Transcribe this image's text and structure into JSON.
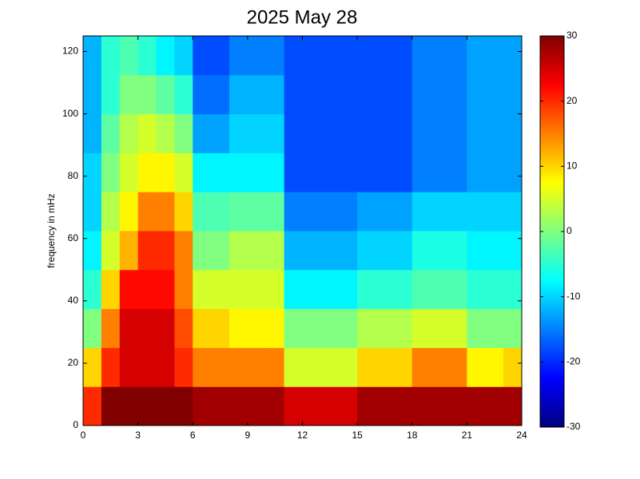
{
  "chart_data": {
    "type": "heatmap",
    "title": "2025 May 28",
    "y_label": "frequency in mHz",
    "colormap": "jet",
    "x_bins": [
      0,
      1,
      2,
      3,
      4,
      5,
      6,
      7,
      8,
      9,
      10,
      11,
      12,
      13,
      14,
      15,
      16,
      17,
      18,
      19,
      20,
      21,
      22,
      23,
      24
    ],
    "y_bins": [
      0,
      12.5,
      25,
      37.5,
      50,
      62.5,
      75,
      87.5,
      100,
      112.5,
      125
    ],
    "z": [
      [
        20,
        30,
        30,
        30,
        30,
        30,
        28,
        28,
        28,
        28,
        28,
        25,
        25,
        25,
        25,
        28,
        28,
        28,
        28,
        28,
        28,
        28,
        28,
        28
      ],
      [
        10,
        20,
        25,
        25,
        25,
        20,
        15,
        15,
        15,
        15,
        15,
        5,
        5,
        5,
        5,
        10,
        10,
        10,
        15,
        15,
        15,
        8,
        8,
        10
      ],
      [
        0,
        15,
        25,
        25,
        25,
        18,
        10,
        10,
        8,
        8,
        8,
        0,
        0,
        0,
        0,
        3,
        3,
        3,
        5,
        5,
        5,
        0,
        0,
        0
      ],
      [
        -5,
        10,
        22,
        22,
        22,
        15,
        5,
        5,
        5,
        5,
        5,
        -8,
        -8,
        -8,
        -8,
        -5,
        -5,
        -5,
        -3,
        -3,
        -3,
        -5,
        -5,
        -5
      ],
      [
        -8,
        5,
        12,
        20,
        20,
        15,
        0,
        0,
        3,
        3,
        3,
        -12,
        -12,
        -12,
        -12,
        -10,
        -10,
        -10,
        -6,
        -6,
        -6,
        -8,
        -8,
        -8
      ],
      [
        -10,
        3,
        8,
        15,
        15,
        10,
        -3,
        -3,
        -2,
        -2,
        -2,
        -15,
        -15,
        -15,
        -15,
        -13,
        -13,
        -13,
        -10,
        -10,
        -10,
        -10,
        -10,
        -10
      ],
      [
        -10,
        0,
        5,
        8,
        8,
        5,
        -8,
        -8,
        -8,
        -8,
        -8,
        -18,
        -18,
        -18,
        -18,
        -18,
        -18,
        -18,
        -15,
        -15,
        -15,
        -13,
        -13,
        -13
      ],
      [
        -12,
        -2,
        3,
        5,
        3,
        0,
        -13,
        -13,
        -10,
        -10,
        -10,
        -18,
        -18,
        -18,
        -18,
        -18,
        -18,
        -18,
        -15,
        -15,
        -15,
        -13,
        -13,
        -13
      ],
      [
        -12,
        -5,
        0,
        0,
        -2,
        -5,
        -16,
        -16,
        -12,
        -12,
        -12,
        -18,
        -18,
        -18,
        -18,
        -18,
        -18,
        -18,
        -15,
        -15,
        -15,
        -13,
        -13,
        -13
      ],
      [
        -12,
        -5,
        -3,
        -5,
        -8,
        -10,
        -18,
        -18,
        -15,
        -15,
        -15,
        -18,
        -18,
        -18,
        -18,
        -18,
        -18,
        -18,
        -15,
        -15,
        -15,
        -13,
        -13,
        -13
      ]
    ],
    "xlim": [
      0,
      24
    ],
    "xticks": [
      0,
      3,
      6,
      9,
      12,
      15,
      18,
      21,
      24
    ],
    "ylim": [
      0,
      125
    ],
    "yticks": [
      0,
      20,
      40,
      60,
      80,
      100,
      120
    ],
    "clim": [
      -30,
      30
    ],
    "colorbar_ticks": [
      -30,
      -20,
      -10,
      0,
      10,
      20,
      30
    ]
  }
}
